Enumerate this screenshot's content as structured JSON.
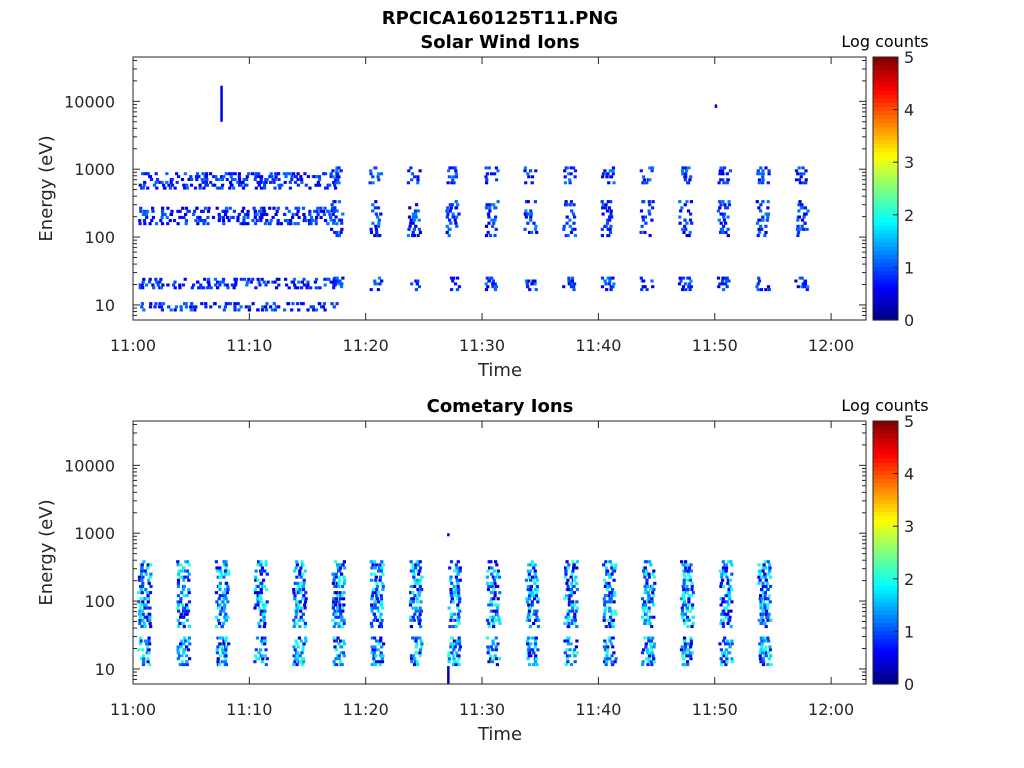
{
  "figure": {
    "title": "RPCICA160125T11.PNG"
  },
  "chart_data": [
    {
      "type": "heatmap",
      "title": "Solar Wind Ions",
      "xlabel": "Time",
      "ylabel": "Energy (eV)",
      "x_ticks": [
        "11:00",
        "11:10",
        "11:20",
        "11:30",
        "11:40",
        "11:50",
        "12:00"
      ],
      "xlim": [
        "11:00",
        "12:03"
      ],
      "y_scale": "log",
      "y_ticks": [
        10,
        100,
        1000,
        10000
      ],
      "y_tick_labels": [
        "10",
        "100",
        "1000",
        "10000"
      ],
      "ylim": [
        6,
        45000
      ],
      "colorbar": {
        "label": "Log counts",
        "ticks": [
          "0",
          "1",
          "2",
          "3",
          "4",
          "5"
        ],
        "range": [
          0,
          5
        ],
        "colormap": "jet"
      },
      "sweeps": [
        {
          "start": "11:00.5",
          "end": "11:17.0",
          "step_min": 1.0,
          "bands": [
            [
              8,
              11
            ],
            [
              17,
              25
            ],
            [
              150,
              280
            ],
            [
              500,
              900
            ]
          ],
          "level_range": [
            0.4,
            1.2
          ],
          "fill": 0.45
        },
        {
          "start": "11:17.0",
          "end": "11:57.0",
          "step_min": 3.33,
          "bands": [
            [
              16,
              26
            ],
            [
              100,
              350
            ],
            [
              600,
              1100
            ]
          ],
          "level_range": [
            0.4,
            1.3
          ],
          "fill": 0.5
        }
      ],
      "features": [
        {
          "time": "11:07.5",
          "energy_range": [
            5000,
            17000
          ],
          "level": 0.5
        },
        {
          "time": "11:50.0",
          "energy_range": [
            8000,
            9000
          ],
          "level": 0.6
        }
      ]
    },
    {
      "type": "heatmap",
      "title": "Cometary Ions",
      "xlabel": "Time",
      "ylabel": "Energy (eV)",
      "x_ticks": [
        "11:00",
        "11:10",
        "11:20",
        "11:30",
        "11:40",
        "11:50",
        "12:00"
      ],
      "xlim": [
        "11:00",
        "12:03"
      ],
      "y_scale": "log",
      "y_ticks": [
        10,
        100,
        1000,
        10000
      ],
      "y_tick_labels": [
        "10",
        "100",
        "1000",
        "10000"
      ],
      "ylim": [
        6,
        45000
      ],
      "colorbar": {
        "label": "Log counts",
        "ticks": [
          "0",
          "1",
          "2",
          "3",
          "4",
          "5"
        ],
        "range": [
          0,
          5
        ],
        "colormap": "jet"
      },
      "sweeps": [
        {
          "start": "11:00.5",
          "end": "11:57.0",
          "step_min": 3.33,
          "bands": [
            [
              11,
              30
            ],
            [
              40,
              400
            ]
          ],
          "level_range": [
            0.3,
            2.2
          ],
          "fill": 0.7
        }
      ],
      "features": [
        {
          "time": "11:27.0",
          "energy_range": [
            900,
            1000
          ],
          "level": 0.5
        },
        {
          "time": "11:27.0",
          "energy_range": [
            6,
            11
          ],
          "level": 0.3
        }
      ]
    }
  ]
}
